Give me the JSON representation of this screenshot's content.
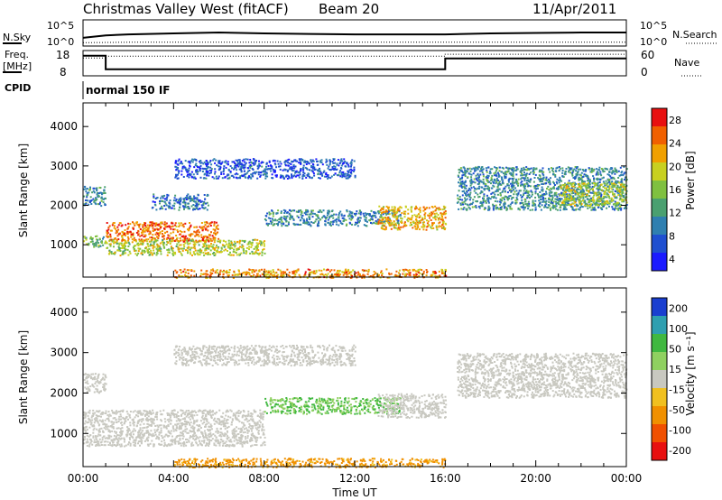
{
  "header": {
    "station": "Christmas Valley West (fitACF)",
    "beam": "Beam 20",
    "date": "11/Apr/2011"
  },
  "noise_panel": {
    "left_label": "N.Sky",
    "right_label": "N.Search",
    "left_ticks": [
      "10^5",
      "10^0"
    ],
    "right_ticks": [
      "10^5",
      "10^0"
    ]
  },
  "freq_panel": {
    "left_label_1": "Freq.",
    "left_label_2": "[MHz]",
    "right_label": "Nave",
    "left_ticks": [
      "18",
      "8"
    ],
    "right_ticks": [
      "60",
      "0"
    ]
  },
  "cpid_panel": {
    "label": "CPID",
    "program": "normal 150 IF"
  },
  "time_axis": {
    "label": "Time UT",
    "ticks": [
      "00:00",
      "04:00",
      "08:00",
      "12:00",
      "16:00",
      "20:00",
      "00:00"
    ]
  },
  "power_panel": {
    "ylabel": "Slant Range [km]",
    "yticks": [
      "1000",
      "2000",
      "3000",
      "4000"
    ],
    "colorbar_label": "Power [dB]",
    "colorbar_ticks": [
      "4",
      "8",
      "12",
      "16",
      "20",
      "24",
      "28"
    ]
  },
  "velocity_panel": {
    "ylabel": "Slant Range [km]",
    "yticks": [
      "1000",
      "2000",
      "3000",
      "4000"
    ],
    "colorbar_label": "Velocity [m s⁻¹]",
    "colorbar_ticks": [
      "200",
      "100",
      "50",
      "15",
      "-15",
      "-50",
      "-100",
      "-200"
    ]
  },
  "chart_data": [
    {
      "type": "line",
      "panel": "noise",
      "x_range_hours": [
        0,
        24
      ],
      "y_scale": "log",
      "y_ticks": [
        "10^0",
        "10^5"
      ],
      "series": [
        {
          "name": "N.Sky",
          "style": "solid",
          "x": [
            0,
            1,
            2,
            4,
            6,
            8,
            10,
            12,
            14,
            16,
            18,
            20,
            22,
            24
          ],
          "y": [
            1.5,
            2.0,
            2.2,
            2.4,
            2.6,
            2.4,
            2.3,
            2.2,
            2.2,
            2.2,
            2.4,
            2.5,
            2.6,
            2.6
          ]
        },
        {
          "name": "N.Search",
          "style": "dotted",
          "x": [
            0,
            2,
            4,
            6,
            8,
            10,
            12,
            14,
            16,
            18,
            20,
            22,
            24
          ],
          "y": [
            0.5,
            0.6,
            0.6,
            0.6,
            0.6,
            0.6,
            0.6,
            0.6,
            0.6,
            0.6,
            0.6,
            0.6,
            0.6
          ]
        }
      ]
    },
    {
      "type": "line",
      "panel": "frequency",
      "x_range_hours": [
        0,
        24
      ],
      "y_ticks": [
        "8",
        "18"
      ],
      "series": [
        {
          "name": "Freq",
          "style": "solid",
          "x": [
            0,
            1,
            1,
            16,
            16,
            24
          ],
          "y": [
            16.5,
            16.5,
            10.5,
            10.5,
            15.3,
            15.3
          ]
        },
        {
          "name": "Nave",
          "style": "dotted",
          "x": [
            0,
            1,
            1,
            16,
            16,
            24
          ],
          "y": [
            45,
            45,
            50,
            50,
            55,
            55
          ]
        }
      ]
    },
    {
      "type": "heatmap",
      "panel": "power",
      "x_range_hours": [
        0,
        24
      ],
      "y_range_km": [
        180,
        4600
      ],
      "units": "dB",
      "color_range": [
        0,
        32
      ],
      "regions": [
        {
          "t0": 0.0,
          "t1": 1.0,
          "r0": 2000,
          "r1": 2500,
          "level": 10
        },
        {
          "t0": 1.0,
          "t1": 6.0,
          "r0": 1100,
          "r1": 1600,
          "level": 26
        },
        {
          "t0": 0.0,
          "t1": 1.0,
          "r0": 950,
          "r1": 1250,
          "level": 14
        },
        {
          "t0": 1.0,
          "t1": 8.0,
          "r0": 750,
          "r1": 1150,
          "level": 18
        },
        {
          "t0": 3.0,
          "t1": 5.5,
          "r0": 1900,
          "r1": 2300,
          "level": 8
        },
        {
          "t0": 4.0,
          "t1": 12.0,
          "r0": 2700,
          "r1": 3200,
          "level": 6
        },
        {
          "t0": 8.0,
          "t1": 14.0,
          "r0": 1500,
          "r1": 1900,
          "level": 10
        },
        {
          "t0": 13.0,
          "t1": 16.0,
          "r0": 1400,
          "r1": 2000,
          "level": 22
        },
        {
          "t0": 16.5,
          "t1": 24.0,
          "r0": 1900,
          "r1": 3000,
          "level": 10
        },
        {
          "t0": 21.0,
          "t1": 24.0,
          "r0": 2000,
          "r1": 2600,
          "level": 18
        },
        {
          "t0": 4.0,
          "t1": 16.0,
          "r0": 180,
          "r1": 400,
          "level": 24
        }
      ]
    },
    {
      "type": "heatmap",
      "panel": "velocity",
      "x_range_hours": [
        0,
        24
      ],
      "y_range_km": [
        180,
        4600
      ],
      "units": "m s^-1",
      "color_range": [
        -250,
        250
      ],
      "regions": [
        {
          "t0": 0.0,
          "t1": 1.0,
          "r0": 2000,
          "r1": 2500,
          "level": 0
        },
        {
          "t0": 0.0,
          "t1": 8.0,
          "r0": 700,
          "r1": 1600,
          "level": 0
        },
        {
          "t0": 4.0,
          "t1": 12.0,
          "r0": 2700,
          "r1": 3200,
          "level": 0
        },
        {
          "t0": 8.0,
          "t1": 14.0,
          "r0": 1500,
          "r1": 1900,
          "level": 30
        },
        {
          "t0": 13.0,
          "t1": 16.0,
          "r0": 1400,
          "r1": 2000,
          "level": 0
        },
        {
          "t0": 16.5,
          "t1": 24.0,
          "r0": 1900,
          "r1": 3000,
          "level": 0
        },
        {
          "t0": 4.0,
          "t1": 16.0,
          "r0": 180,
          "r1": 400,
          "level": -60
        }
      ]
    }
  ]
}
